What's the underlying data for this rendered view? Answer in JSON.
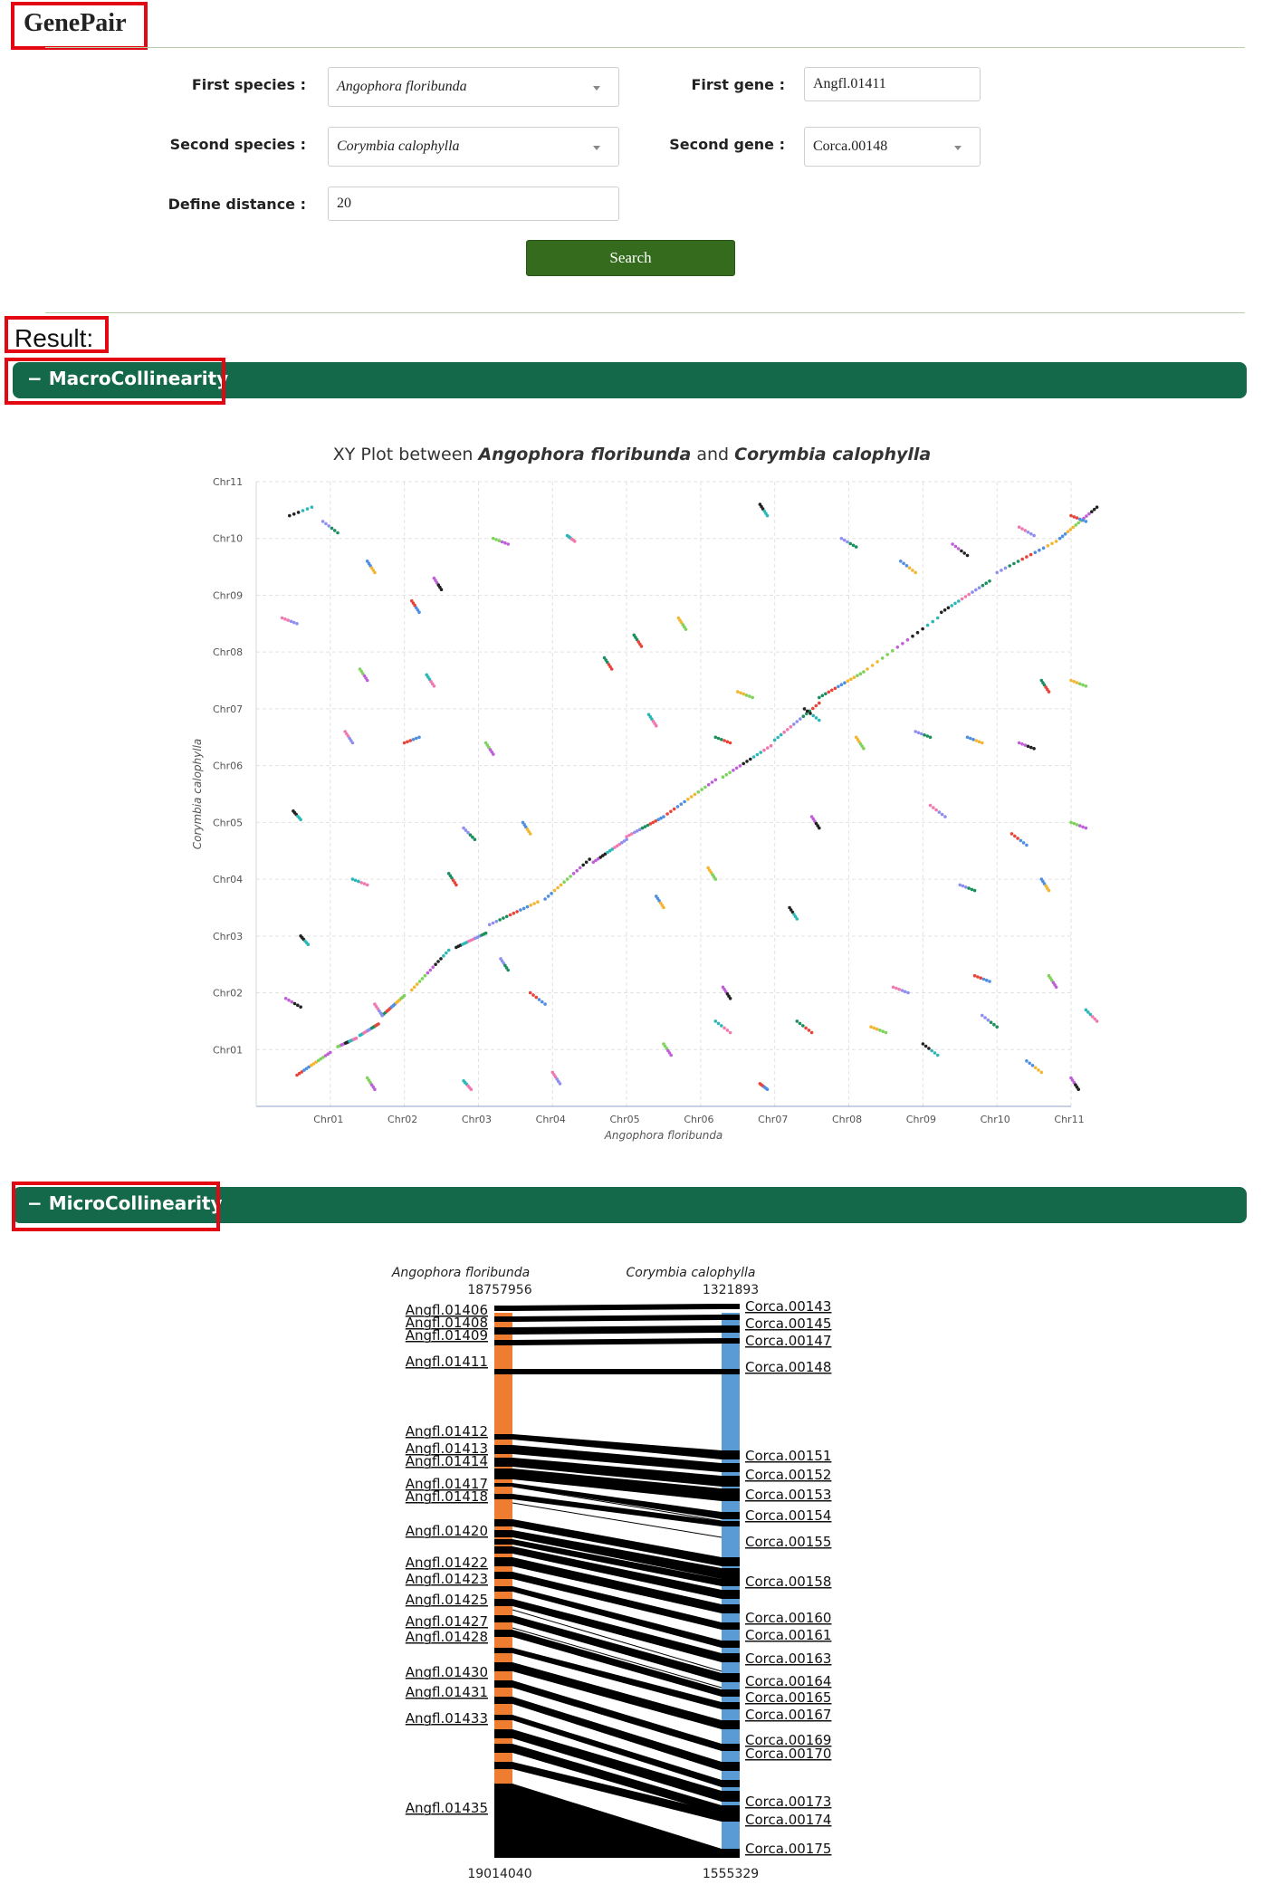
{
  "brand": "GenePair",
  "form": {
    "first_species_label": "First species :",
    "first_species_value": "Angophora floribunda",
    "second_species_label": "Second species :",
    "second_species_value": "Corymbia calophylla",
    "distance_label": "Define distance :",
    "distance_value": "20",
    "first_gene_label": "First gene :",
    "first_gene_value": "Angfl.01411",
    "second_gene_label": "Second gene :",
    "second_gene_value": "Corca.00148",
    "search_label": "Search"
  },
  "result_label": "Result:",
  "macro": {
    "section_title": "− MacroCollinearity",
    "chart_data": {
      "type": "scatter",
      "title_prefix": "XY Plot between ",
      "title_species1": "Angophora floribunda",
      "title_and": " and ",
      "title_species2": "Corymbia calophylla",
      "xlabel": "Angophora floribunda",
      "ylabel": "Corymbia calophylla",
      "x_ticks": [
        "Chr01",
        "Chr02",
        "Chr03",
        "Chr04",
        "Chr05",
        "Chr06",
        "Chr07",
        "Chr08",
        "Chr09",
        "Chr10",
        "Chr11"
      ],
      "y_ticks": [
        "Chr01",
        "Chr02",
        "Chr03",
        "Chr04",
        "Chr05",
        "Chr06",
        "Chr07",
        "Chr08",
        "Chr09",
        "Chr10",
        "Chr11"
      ],
      "grid": true,
      "point_colors": [
        "#e8443a",
        "#4f8fe0",
        "#f2b632",
        "#7fd35b",
        "#c060d8",
        "#222222",
        "#2eb7b7",
        "#f07ab0",
        "#8f8ff0",
        "#1c8f5e"
      ],
      "diagonal_segments": [
        [
          0.55,
          0.55,
          1.0,
          0.95
        ],
        [
          1.1,
          1.05,
          1.35,
          1.2
        ],
        [
          1.4,
          1.25,
          1.65,
          1.45
        ],
        [
          1.7,
          1.6,
          2.0,
          1.95
        ],
        [
          2.1,
          2.05,
          2.6,
          2.75
        ],
        [
          2.7,
          2.8,
          3.1,
          3.05
        ],
        [
          3.15,
          3.2,
          3.8,
          3.6
        ],
        [
          3.9,
          3.65,
          4.5,
          4.35
        ],
        [
          4.55,
          4.3,
          5.0,
          4.7
        ],
        [
          5.0,
          4.75,
          5.5,
          5.1
        ],
        [
          5.55,
          5.15,
          6.2,
          5.75
        ],
        [
          6.3,
          5.8,
          6.95,
          6.35
        ],
        [
          7.0,
          6.45,
          7.6,
          7.1
        ],
        [
          7.6,
          7.2,
          8.2,
          7.65
        ],
        [
          8.25,
          7.7,
          9.2,
          8.6
        ],
        [
          9.25,
          8.7,
          9.9,
          9.25
        ],
        [
          10.0,
          9.4,
          10.8,
          9.95
        ],
        [
          10.85,
          10.0,
          11.35,
          10.55
        ]
      ],
      "scatter_segments": [
        [
          0.45,
          10.4,
          0.75,
          10.55
        ],
        [
          0.9,
          10.3,
          1.1,
          10.1
        ],
        [
          1.5,
          9.6,
          1.6,
          9.4
        ],
        [
          2.4,
          9.3,
          2.5,
          9.1
        ],
        [
          0.35,
          8.6,
          0.55,
          8.5
        ],
        [
          2.1,
          8.9,
          2.2,
          8.7
        ],
        [
          3.2,
          10.0,
          3.4,
          9.9
        ],
        [
          4.2,
          10.05,
          4.3,
          9.95
        ],
        [
          5.1,
          8.3,
          5.2,
          8.1
        ],
        [
          5.7,
          8.6,
          5.8,
          8.4
        ],
        [
          6.8,
          10.6,
          6.9,
          10.4
        ],
        [
          7.9,
          10.0,
          8.1,
          9.85
        ],
        [
          8.7,
          9.6,
          8.9,
          9.4
        ],
        [
          9.4,
          9.9,
          9.6,
          9.7
        ],
        [
          10.3,
          10.2,
          10.5,
          10.05
        ],
        [
          11.0,
          10.4,
          11.2,
          10.3
        ],
        [
          1.4,
          7.7,
          1.5,
          7.5
        ],
        [
          2.3,
          7.6,
          2.4,
          7.4
        ],
        [
          4.7,
          7.9,
          4.8,
          7.7
        ],
        [
          6.5,
          7.3,
          6.7,
          7.2
        ],
        [
          7.4,
          7.0,
          7.6,
          6.8
        ],
        [
          8.9,
          6.6,
          9.1,
          6.5
        ],
        [
          9.6,
          6.5,
          9.8,
          6.4
        ],
        [
          10.3,
          6.4,
          10.5,
          6.3
        ],
        [
          1.2,
          6.6,
          1.3,
          6.4
        ],
        [
          2.0,
          6.4,
          2.2,
          6.5
        ],
        [
          3.1,
          6.4,
          3.2,
          6.2
        ],
        [
          5.3,
          6.9,
          5.4,
          6.7
        ],
        [
          6.2,
          6.5,
          6.4,
          6.4
        ],
        [
          8.1,
          6.5,
          8.2,
          6.3
        ],
        [
          0.5,
          5.2,
          0.6,
          5.05
        ],
        [
          2.8,
          4.9,
          2.95,
          4.7
        ],
        [
          3.6,
          5.0,
          3.7,
          4.8
        ],
        [
          7.5,
          5.1,
          7.6,
          4.9
        ],
        [
          9.1,
          5.3,
          9.3,
          5.1
        ],
        [
          10.2,
          4.8,
          10.4,
          4.6
        ],
        [
          11.0,
          5.0,
          11.2,
          4.9
        ],
        [
          1.3,
          4.0,
          1.5,
          3.9
        ],
        [
          2.6,
          4.1,
          2.7,
          3.9
        ],
        [
          6.1,
          4.2,
          6.2,
          4.0
        ],
        [
          7.2,
          3.5,
          7.3,
          3.3
        ],
        [
          9.5,
          3.9,
          9.7,
          3.8
        ],
        [
          10.6,
          4.0,
          10.7,
          3.8
        ],
        [
          0.4,
          1.9,
          0.6,
          1.75
        ],
        [
          1.6,
          1.8,
          1.7,
          1.6
        ],
        [
          3.7,
          2.0,
          3.9,
          1.8
        ],
        [
          5.5,
          1.1,
          5.6,
          0.9
        ],
        [
          6.2,
          1.5,
          6.4,
          1.3
        ],
        [
          7.3,
          1.5,
          7.5,
          1.3
        ],
        [
          8.3,
          1.4,
          8.5,
          1.3
        ],
        [
          9.0,
          1.1,
          9.2,
          0.9
        ],
        [
          9.8,
          1.6,
          10.0,
          1.4
        ],
        [
          10.4,
          0.8,
          10.6,
          0.6
        ],
        [
          11.0,
          0.5,
          11.1,
          0.3
        ],
        [
          4.0,
          0.6,
          4.1,
          0.4
        ],
        [
          6.8,
          0.4,
          6.9,
          0.3
        ],
        [
          1.5,
          0.5,
          1.6,
          0.3
        ],
        [
          2.8,
          0.45,
          2.9,
          0.3
        ],
        [
          10.6,
          7.5,
          10.7,
          7.3
        ],
        [
          11.0,
          7.5,
          11.2,
          7.4
        ],
        [
          0.6,
          3.0,
          0.7,
          2.85
        ],
        [
          3.3,
          2.6,
          3.4,
          2.4
        ],
        [
          5.4,
          3.7,
          5.5,
          3.5
        ],
        [
          6.3,
          2.1,
          6.4,
          1.9
        ],
        [
          8.6,
          2.1,
          8.8,
          2.0
        ],
        [
          9.7,
          2.3,
          9.9,
          2.2
        ],
        [
          10.7,
          2.3,
          10.8,
          2.1
        ],
        [
          11.2,
          1.7,
          11.35,
          1.5
        ]
      ]
    }
  },
  "micro": {
    "section_title": "− MicroCollinearity",
    "species1": "Angophora floribunda",
    "species2": "Corymbia calophylla",
    "start1": "18757956",
    "end1": "19014040",
    "start2": "1321893",
    "end2": "1555329",
    "colors": {
      "bar1": "#ee7d32",
      "bar2": "#5b9bd5"
    },
    "genes1": [
      "Angfl.01406",
      "Angfl.01408",
      "Angfl.01409",
      "Angfl.01411",
      "Angfl.01412",
      "Angfl.01413",
      "Angfl.01414",
      "Angfl.01417",
      "Angfl.01418",
      "Angfl.01420",
      "Angfl.01422",
      "Angfl.01423",
      "Angfl.01425",
      "Angfl.01427",
      "Angfl.01428",
      "Angfl.01430",
      "Angfl.01431",
      "Angfl.01433",
      "Angfl.01435"
    ],
    "genes2": [
      "Corca.00143",
      "Corca.00145",
      "Corca.00147",
      "Corca.00148",
      "Corca.00151",
      "Corca.00152",
      "Corca.00153",
      "Corca.00154",
      "Corca.00155",
      "Corca.00158",
      "Corca.00160",
      "Corca.00161",
      "Corca.00163",
      "Corca.00164",
      "Corca.00165",
      "Corca.00167",
      "Corca.00169",
      "Corca.00170",
      "Corca.00173",
      "Corca.00174",
      "Corca.00175"
    ]
  }
}
